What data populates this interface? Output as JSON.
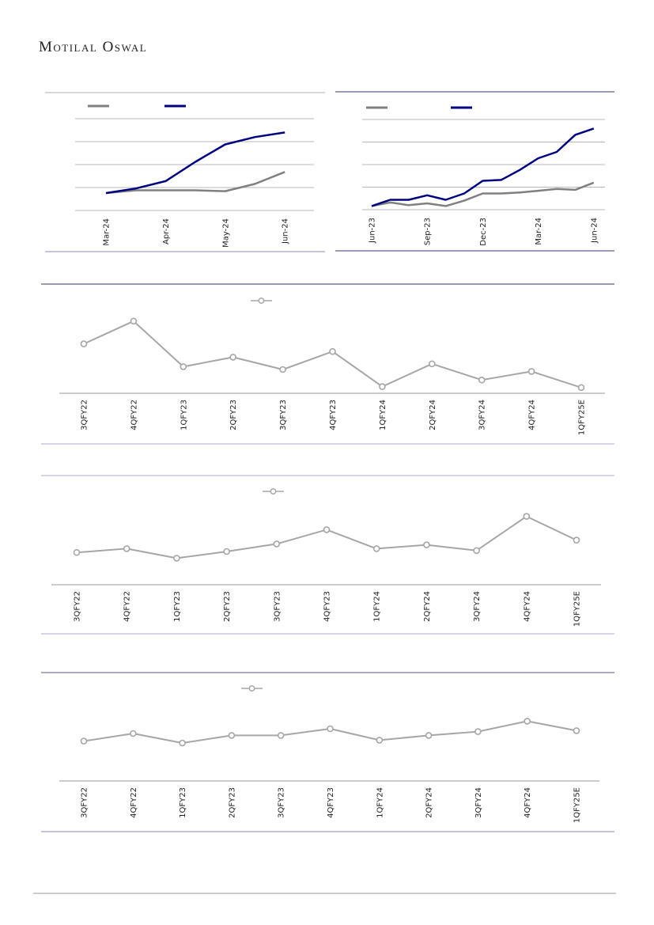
{
  "header": {
    "brand": "Motilal Oswal"
  },
  "chart_data": [
    {
      "type": "line",
      "categories": [
        "Mar-24",
        null,
        "Apr-24",
        null,
        "May-24",
        null,
        "Jun-24"
      ],
      "series": [
        {
          "color": "#808080",
          "values": [
            19,
            22,
            22,
            22,
            21,
            29,
            42
          ]
        },
        {
          "color": "#000080",
          "values": [
            19,
            24,
            32,
            53,
            72,
            80,
            85
          ]
        }
      ],
      "ylim": [
        0,
        100
      ],
      "yticks": [
        0,
        25,
        50,
        75,
        100
      ],
      "grid": true
    },
    {
      "type": "line",
      "categories": [
        "Jun-23",
        null,
        null,
        "Sep-23",
        null,
        null,
        "Dec-23",
        null,
        null,
        "Mar-24",
        null,
        null,
        "Jun-24"
      ],
      "series": [
        {
          "color": "#808080",
          "values": [
            4,
            8,
            5,
            7,
            4,
            10,
            18,
            18,
            19,
            21,
            23,
            22,
            30
          ]
        },
        {
          "color": "#000080",
          "values": [
            4,
            11,
            11,
            16,
            11,
            18,
            32,
            33,
            44,
            57,
            64,
            83,
            90
          ]
        }
      ],
      "ylim": [
        0,
        100
      ],
      "yticks": [
        0,
        25,
        50,
        75,
        100
      ],
      "grid": true
    },
    {
      "type": "line",
      "categories": [
        "3QFY22",
        "4QFY22",
        "1QFY23",
        "2QFY23",
        "3QFY23",
        "4QFY23",
        "1QFY24",
        "2QFY24",
        "3QFY24",
        "4QFY24",
        "1QFY25E"
      ],
      "series": [
        {
          "color": "#a6a6a6",
          "marker": "circle",
          "values": [
            52,
            76,
            28,
            38,
            25,
            44,
            7,
            31,
            14,
            23,
            6
          ]
        }
      ],
      "ylim": [
        0,
        100
      ],
      "grid": false
    },
    {
      "type": "line",
      "categories": [
        "3QFY22",
        "4QFY22",
        "1QFY23",
        "2QFY23",
        "3QFY23",
        "4QFY23",
        "1QFY24",
        "2QFY24",
        "3QFY24",
        "4QFY24",
        "1QFY25E"
      ],
      "series": [
        {
          "color": "#a6a6a6",
          "marker": "circle",
          "values": [
            34,
            38,
            28,
            35,
            43,
            58,
            38,
            42,
            36,
            72,
            47
          ]
        }
      ],
      "ylim": [
        0,
        100
      ],
      "grid": false
    },
    {
      "type": "line",
      "categories": [
        "3QFY22",
        "4QFY22",
        "1QFY23",
        "2QFY23",
        "3QFY23",
        "4QFY23",
        "1QFY24",
        "2QFY24",
        "3QFY24",
        "4QFY24",
        "1QFY25E"
      ],
      "series": [
        {
          "color": "#a6a6a6",
          "marker": "circle",
          "values": [
            42,
            50,
            40,
            48,
            48,
            55,
            43,
            48,
            52,
            63,
            53
          ]
        }
      ],
      "ylim": [
        0,
        100
      ],
      "grid": false
    }
  ]
}
